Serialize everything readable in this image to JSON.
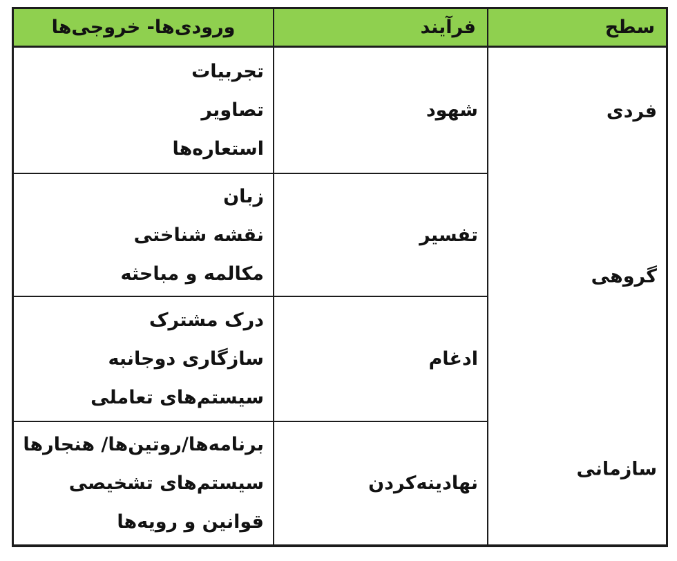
{
  "table": {
    "header": {
      "level": "سطح",
      "process": "فرآیند",
      "io": "ورودی‌ها- خروجی‌ها"
    },
    "levels": [
      {
        "label": "فردی"
      },
      {
        "label": "گروهی"
      },
      {
        "label": "سازمانی"
      }
    ],
    "rows": [
      {
        "process": "شهود",
        "io": [
          "تجربیات",
          "تصاویر",
          "استعاره‌ها"
        ]
      },
      {
        "process": "تفسیر",
        "io": [
          "زبان",
          "نقشه شناختی",
          "مکالمه و مباحثه"
        ]
      },
      {
        "process": "ادغام",
        "io": [
          "درک مشترک",
          "سازگاری دوجانبه",
          "سیستم‌های تعاملی"
        ]
      },
      {
        "process": "نهادینه‌کردن",
        "io": [
          "برنامه‌ها/روتین‌ها/ هنجارها",
          "سیستم‌های تشخیصی",
          "قوانین و رویه‌ها"
        ]
      }
    ],
    "colors": {
      "header_bg": "#8FD04F",
      "border": "#1c1c1c",
      "text": "#121212",
      "background": "#ffffff"
    }
  }
}
